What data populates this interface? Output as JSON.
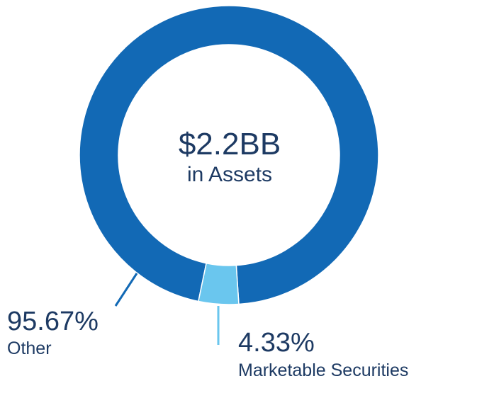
{
  "chart_data": {
    "type": "pie",
    "variant": "donut",
    "center_value": "$2.2BB",
    "center_label": "in Assets",
    "slices": [
      {
        "label": "Other",
        "value": 95.67,
        "value_label": "95.67%",
        "color": "#1269b5"
      },
      {
        "label": "Marketable Securities",
        "value": 4.33,
        "value_label": "4.33%",
        "color": "#6ac6ee"
      }
    ]
  }
}
